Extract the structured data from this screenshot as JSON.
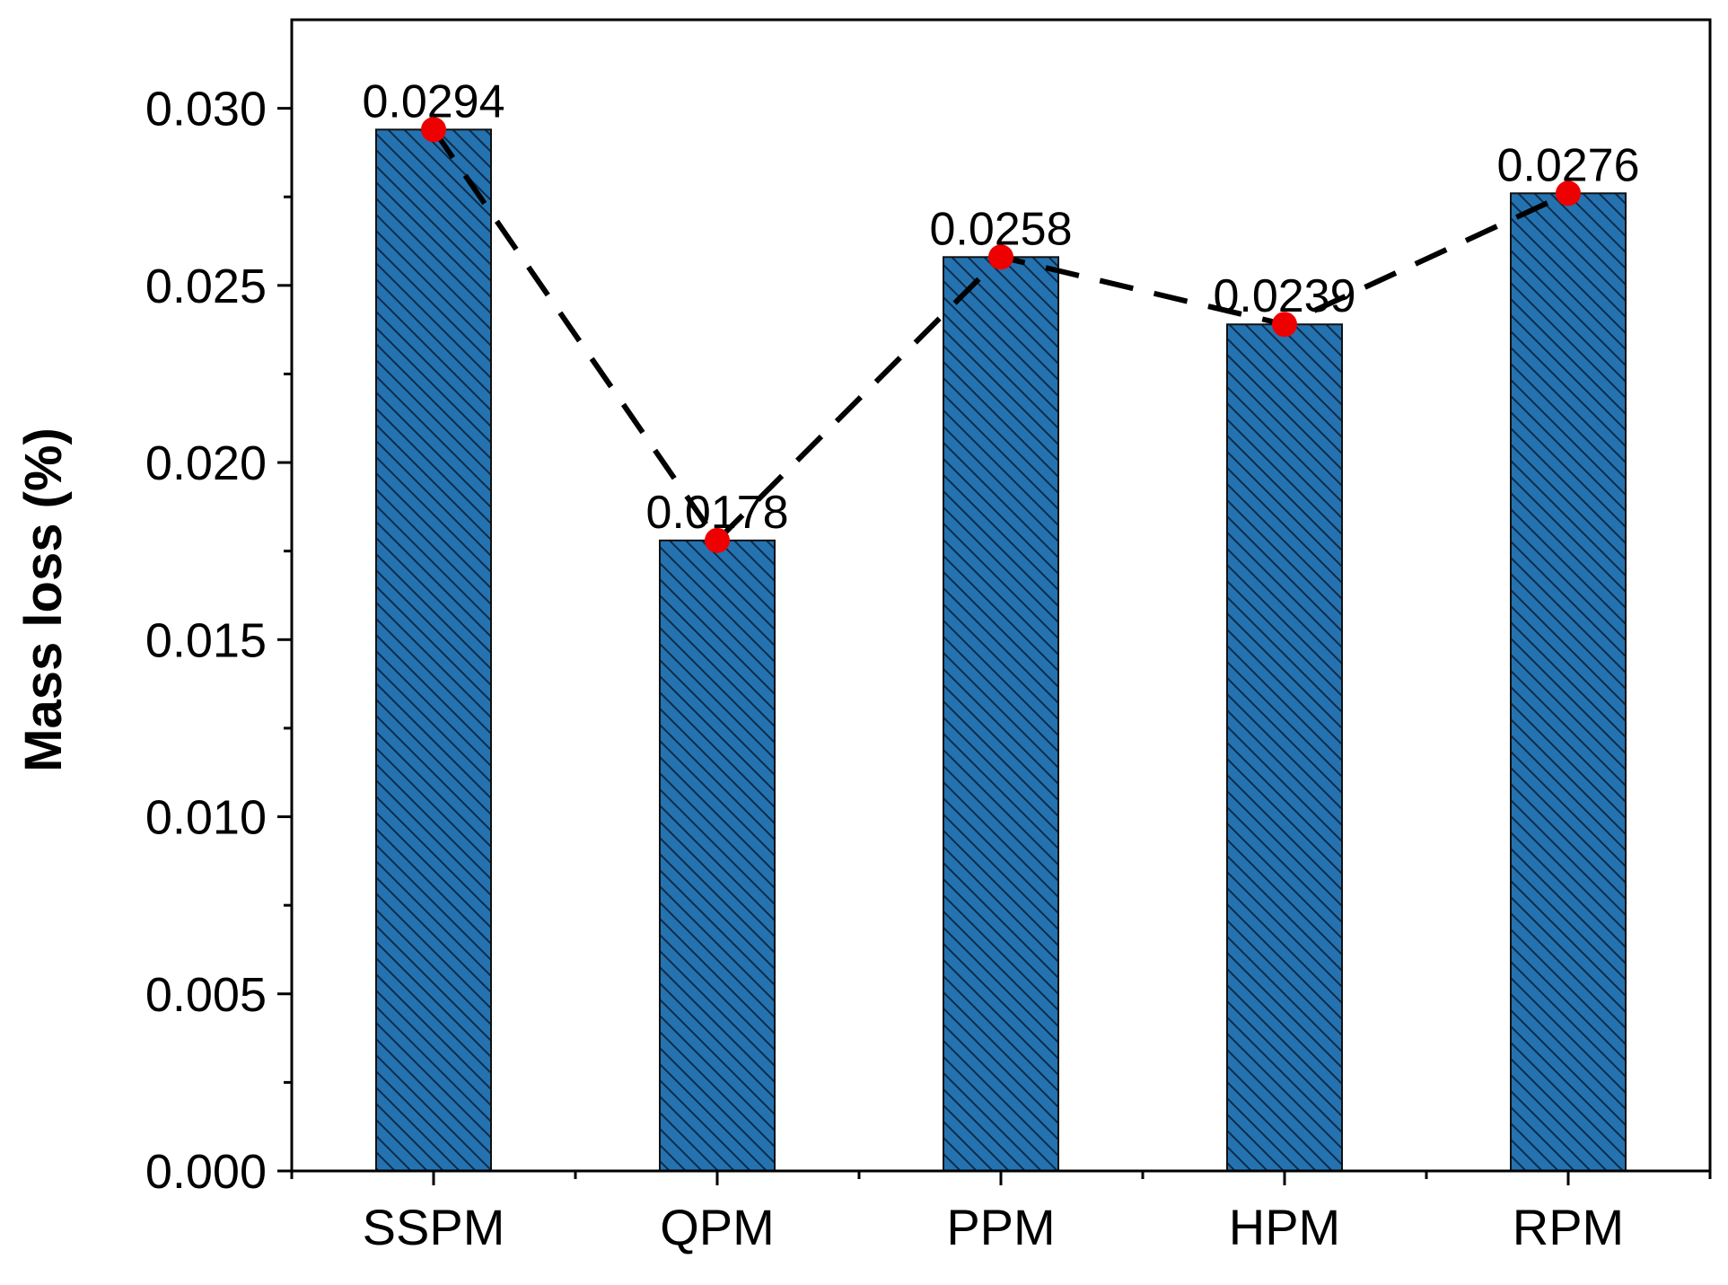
{
  "chart_data": {
    "type": "bar",
    "title": "",
    "xlabel": "",
    "ylabel": "Mass loss (%)",
    "categories": [
      "SSPM",
      "QPM",
      "PPM",
      "HPM",
      "RPM"
    ],
    "values": [
      0.0294,
      0.0178,
      0.0258,
      0.0239,
      0.0276
    ],
    "data_labels": [
      "0.0294",
      "0.0178",
      "0.0258",
      "0.0239",
      "0.0276"
    ],
    "ylim": [
      0,
      0.0325
    ],
    "yticks": [
      0.0,
      0.005,
      0.01,
      0.015,
      0.02,
      0.025,
      0.03
    ],
    "ytick_labels": [
      "0.000",
      "0.005",
      "0.010",
      "0.015",
      "0.020",
      "0.025",
      "0.030"
    ],
    "overlay": "dashed black line connecting bar tops with red circle markers",
    "bar_fill": "hatched diagonal",
    "grid": false,
    "legend": "none",
    "colors": {
      "bar": "#2473B0",
      "bar_edge": "#111111",
      "hatch": "#0d2a48",
      "line": "#000000",
      "marker": "#EE0000",
      "axis": "#000000"
    }
  }
}
